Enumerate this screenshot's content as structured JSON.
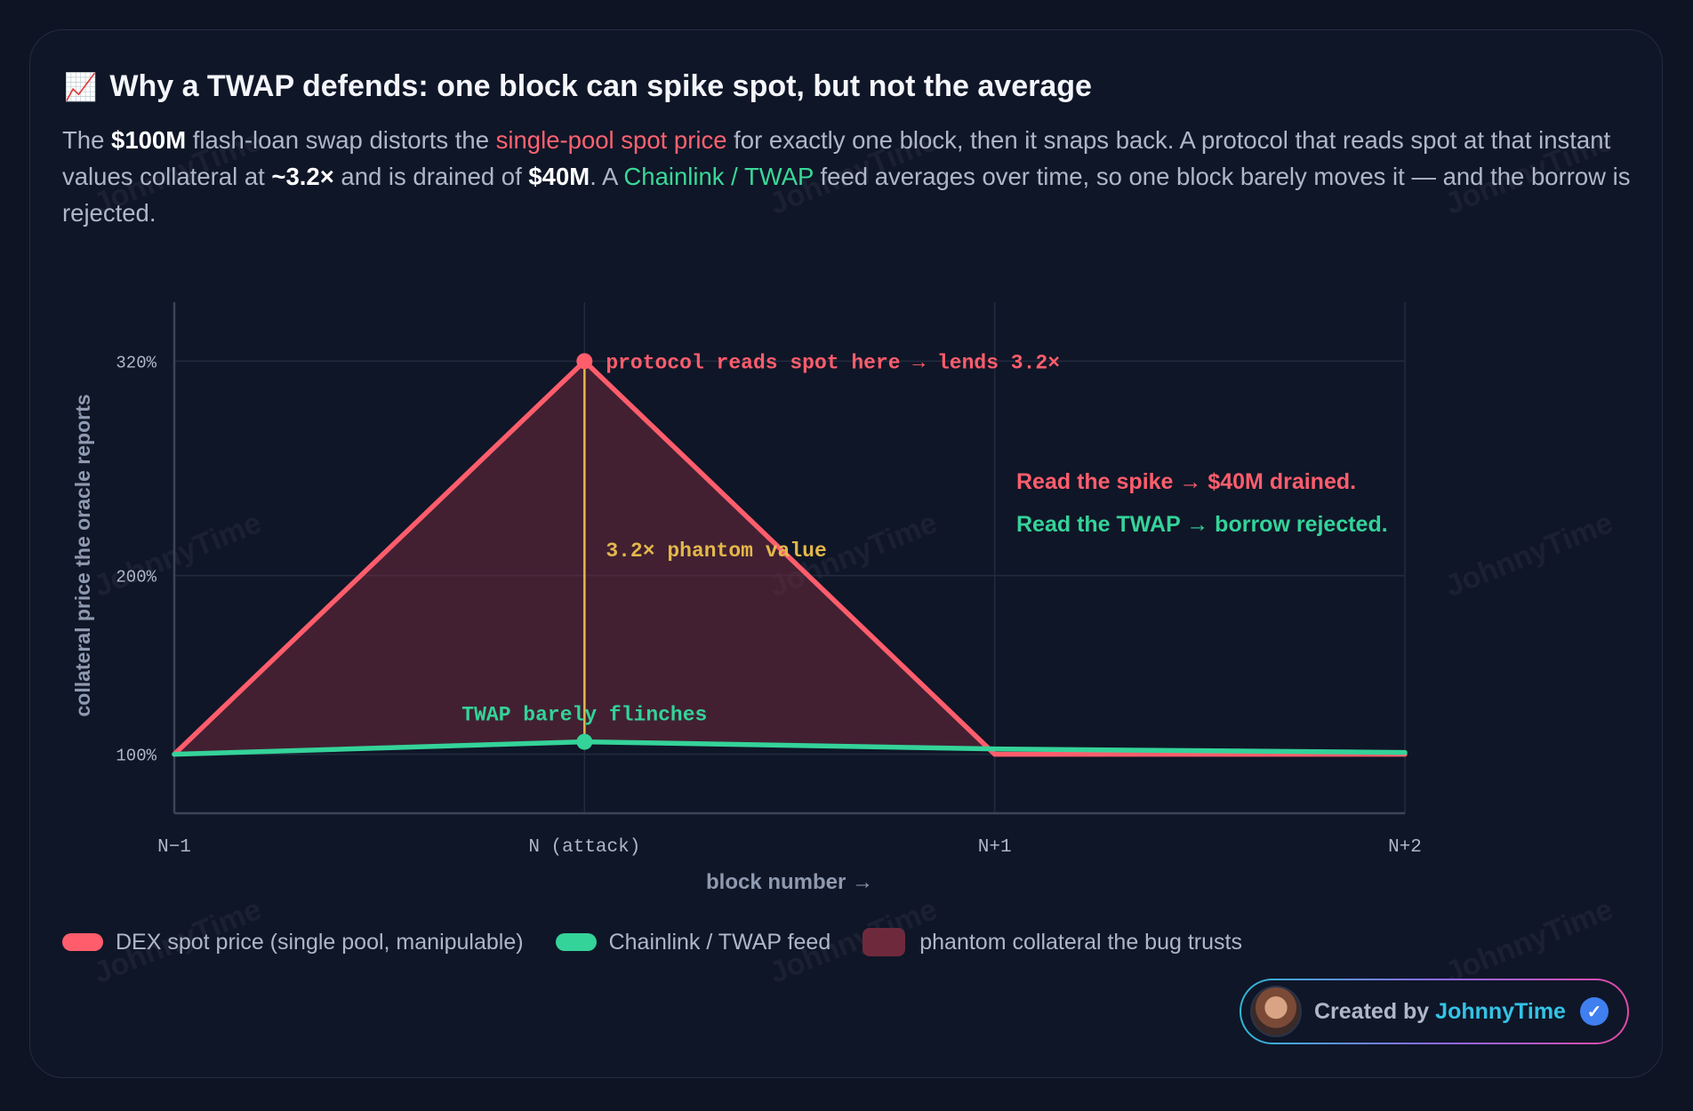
{
  "header": {
    "emoji": "📈",
    "title": "Why a TWAP defends: one block can spike spot, but not the average"
  },
  "intro": {
    "p1": "The ",
    "amount": "$100M",
    "p2": " flash-loan swap distorts the ",
    "spot_term": "single-pool spot price",
    "p3": " for exactly one block, then it snaps back. A protocol that reads spot at that instant values collateral at ",
    "multiple": "~3.2×",
    "p4": " and is drained of ",
    "drained": "$40M",
    "p5": ". A ",
    "feed_term": "Chainlink / TWAP",
    "p6": " feed averages over time, so one block barely moves it — and the borrow is rejected."
  },
  "watermark": "JohnnyTime",
  "chart_data": {
    "type": "line",
    "categories": [
      "N−1",
      "N (attack)",
      "N+1",
      "N+2"
    ],
    "xlabel": "block number →",
    "ylabel": "collateral price the oracle reports",
    "yticks": [
      100,
      200,
      320
    ],
    "ytick_labels": [
      "100%",
      "200%",
      "320%"
    ],
    "ylim": [
      67,
      353
    ],
    "grid": true,
    "series": [
      {
        "key": "spot",
        "name": "DEX spot price (single pool, manipulable)",
        "color": "#ff5d6c",
        "values": [
          100,
          320,
          100,
          100
        ]
      },
      {
        "key": "twap",
        "name": "Chainlink / TWAP feed",
        "color": "#34d399",
        "values": [
          100,
          107,
          103,
          101
        ]
      }
    ],
    "area": {
      "name": "phantom collateral the bug trusts",
      "color": "#6e2a3c"
    },
    "annotations": {
      "spike": "protocol reads spot here → lends 3.2×",
      "phantom": "3.2× phantom value",
      "twap": "TWAP barely flinches",
      "outcome_spike": "Read the spike → $40M drained.",
      "outcome_twap": "Read the TWAP → borrow rejected."
    },
    "colors": {
      "grid": "#222c3e",
      "axis": "#3a4458",
      "tick": "#aeb7c8",
      "label": "#8f9ab0",
      "phantom_line": "#e3b84a"
    }
  },
  "badge": {
    "prefix": "Created by ",
    "name": "JohnnyTime",
    "check": "✓"
  }
}
